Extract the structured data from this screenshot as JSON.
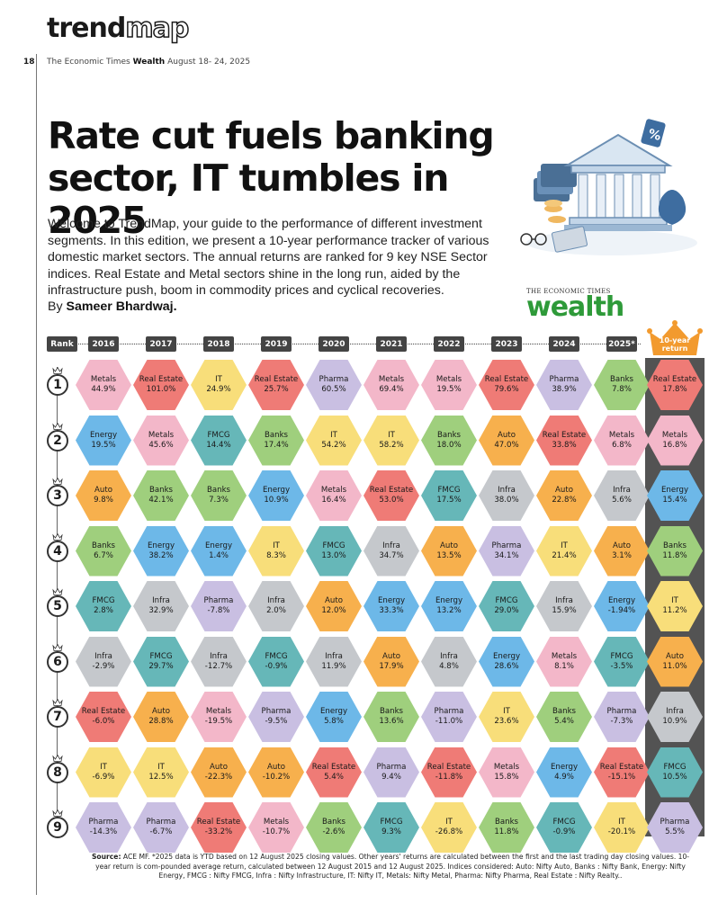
{
  "masthead": {
    "brand_part1": "trend",
    "brand_part2": "map",
    "page_number": "18",
    "publication": "The Economic Times",
    "section": "Wealth",
    "date": "August 18- 24, 2025"
  },
  "headline": "Rate cut fuels banking sector, IT tumbles in 2025",
  "intro": "Welcome to TrendMap, your guide to the performance of different investment segments. In this edition, we present a 10-year performance tracker of various domestic market sectors. The annual returns are ranked for 9 key NSE Sector indices. Real Estate and Metal sectors shine in the long run, aided by the infrastructure push, boom in commodity prices and cyclical recoveries.",
  "byline_prefix": "By",
  "author": "Sameer Bhardwaj.",
  "wealth_brand": {
    "small": "THE ECONOMIC TIMES",
    "big": "wealth"
  },
  "table": {
    "rank_label": "Rank",
    "years": [
      "2016",
      "2017",
      "2018",
      "2019",
      "2020",
      "2021",
      "2022",
      "2023",
      "2024",
      "2025*"
    ],
    "ten_year_label_1": "10-year",
    "ten_year_label_2": "return",
    "ranks": [
      "1",
      "2",
      "3",
      "4",
      "5",
      "6",
      "7",
      "8",
      "9"
    ],
    "columns": [
      [
        [
          "Metals",
          "44.9%"
        ],
        [
          "Energy",
          "19.5%"
        ],
        [
          "Auto",
          "9.8%"
        ],
        [
          "Banks",
          "6.7%"
        ],
        [
          "FMCG",
          "2.8%"
        ],
        [
          "Infra",
          "-2.9%"
        ],
        [
          "Real Estate",
          "-6.0%"
        ],
        [
          "IT",
          "-6.9%"
        ],
        [
          "Pharma",
          "-14.3%"
        ]
      ],
      [
        [
          "Real Estate",
          "101.0%"
        ],
        [
          "Metals",
          "45.6%"
        ],
        [
          "Banks",
          "42.1%"
        ],
        [
          "Energy",
          "38.2%"
        ],
        [
          "Infra",
          "32.9%"
        ],
        [
          "FMCG",
          "29.7%"
        ],
        [
          "Auto",
          "28.8%"
        ],
        [
          "IT",
          "12.5%"
        ],
        [
          "Pharma",
          "-6.7%"
        ]
      ],
      [
        [
          "IT",
          "24.9%"
        ],
        [
          "FMCG",
          "14.4%"
        ],
        [
          "Banks",
          "7.3%"
        ],
        [
          "Energy",
          "1.4%"
        ],
        [
          "Pharma",
          "-7.8%"
        ],
        [
          "Infra",
          "-12.7%"
        ],
        [
          "Metals",
          "-19.5%"
        ],
        [
          "Auto",
          "-22.3%"
        ],
        [
          "Real Estate",
          "-33.2%"
        ]
      ],
      [
        [
          "Real Estate",
          "25.7%"
        ],
        [
          "Banks",
          "17.4%"
        ],
        [
          "Energy",
          "10.9%"
        ],
        [
          "IT",
          "8.3%"
        ],
        [
          "Infra",
          "2.0%"
        ],
        [
          "FMCG",
          "-0.9%"
        ],
        [
          "Pharma",
          "-9.5%"
        ],
        [
          "Auto",
          "-10.2%"
        ],
        [
          "Metals",
          "-10.7%"
        ]
      ],
      [
        [
          "Pharma",
          "60.5%"
        ],
        [
          "IT",
          "54.2%"
        ],
        [
          "Metals",
          "16.4%"
        ],
        [
          "FMCG",
          "13.0%"
        ],
        [
          "Auto",
          "12.0%"
        ],
        [
          "Infra",
          "11.9%"
        ],
        [
          "Energy",
          "5.8%"
        ],
        [
          "Real Estate",
          "5.4%"
        ],
        [
          "Banks",
          "-2.6%"
        ]
      ],
      [
        [
          "Metals",
          "69.4%"
        ],
        [
          "IT",
          "58.2%"
        ],
        [
          "Real Estate",
          "53.0%"
        ],
        [
          "Infra",
          "34.7%"
        ],
        [
          "Energy",
          "33.3%"
        ],
        [
          "Auto",
          "17.9%"
        ],
        [
          "Banks",
          "13.6%"
        ],
        [
          "Pharma",
          "9.4%"
        ],
        [
          "FMCG",
          "9.3%"
        ]
      ],
      [
        [
          "Metals",
          "19.5%"
        ],
        [
          "Banks",
          "18.0%"
        ],
        [
          "FMCG",
          "17.5%"
        ],
        [
          "Auto",
          "13.5%"
        ],
        [
          "Energy",
          "13.2%"
        ],
        [
          "Infra",
          "4.8%"
        ],
        [
          "Pharma",
          "-11.0%"
        ],
        [
          "Real Estate",
          "-11.8%"
        ],
        [
          "IT",
          "-26.8%"
        ]
      ],
      [
        [
          "Real Estate",
          "79.6%"
        ],
        [
          "Auto",
          "47.0%"
        ],
        [
          "Infra",
          "38.0%"
        ],
        [
          "Pharma",
          "34.1%"
        ],
        [
          "FMCG",
          "29.0%"
        ],
        [
          "Energy",
          "28.6%"
        ],
        [
          "IT",
          "23.6%"
        ],
        [
          "Metals",
          "15.8%"
        ],
        [
          "Banks",
          "11.8%"
        ]
      ],
      [
        [
          "Pharma",
          "38.9%"
        ],
        [
          "Real Estate",
          "33.8%"
        ],
        [
          "Auto",
          "22.8%"
        ],
        [
          "IT",
          "21.4%"
        ],
        [
          "Infra",
          "15.9%"
        ],
        [
          "Metals",
          "8.1%"
        ],
        [
          "Banks",
          "5.4%"
        ],
        [
          "Energy",
          "4.9%"
        ],
        [
          "FMCG",
          "-0.9%"
        ]
      ],
      [
        [
          "Banks",
          "7.8%"
        ],
        [
          "Metals",
          "6.8%"
        ],
        [
          "Infra",
          "5.6%"
        ],
        [
          "Auto",
          "3.1%"
        ],
        [
          "Energy",
          "-1.94%"
        ],
        [
          "FMCG",
          "-3.5%"
        ],
        [
          "Pharma",
          "-7.3%"
        ],
        [
          "Real Estate",
          "-15.1%"
        ],
        [
          "IT",
          "-20.1%"
        ]
      ]
    ],
    "ten_year": [
      [
        "Real Estate",
        "17.8%"
      ],
      [
        "Metals",
        "16.8%"
      ],
      [
        "Energy",
        "15.4%"
      ],
      [
        "Banks",
        "11.8%"
      ],
      [
        "IT",
        "11.2%"
      ],
      [
        "Auto",
        "11.0%"
      ],
      [
        "Infra",
        "10.9%"
      ],
      [
        "FMCG",
        "10.5%"
      ],
      [
        "Pharma",
        "5.5%"
      ]
    ]
  },
  "sector_colors": {
    "Metals": "#f3b7c9",
    "Real Estate": "#ef7b76",
    "IT": "#f8de7a",
    "Pharma": "#c9bfe2",
    "Banks": "#9fcf7d",
    "Energy": "#6db8e8",
    "FMCG": "#66b7b8",
    "Auto": "#f7b04d",
    "Infra": "#c5c8cc"
  },
  "source": {
    "label": "Source:",
    "text": "ACE MF. *2025 data is YTD based on 12 August 2025 closing values. Other years' returns are calculated between the first and the last trading day closing values. 10-year return is com-pounded average return, calculated between 12 August 2015 and 12 August 2025. Indices considered: Auto: Nifty Auto, Banks : Nifty Bank, Energy: Nifty Energy, FMCG : Nifty FMCG, Infra : Nifty Infrastructure, IT: Nifty IT, Metals: Nifty Metal, Pharma: Nifty Pharma, Real Estate : Nifty Realty.."
  }
}
